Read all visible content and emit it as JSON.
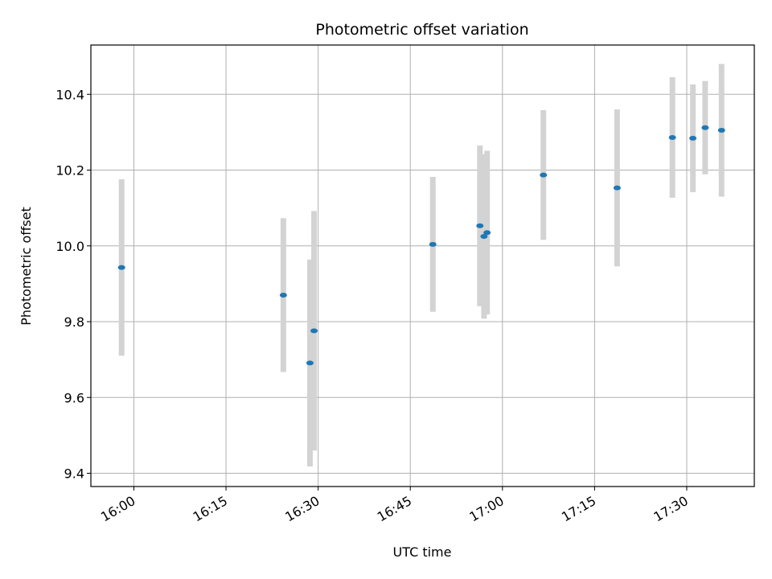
{
  "chart_data": {
    "type": "scatter",
    "title": "Photometric offset variation",
    "xlabel": "UTC time",
    "ylabel": "Photometric offset",
    "xlim": [
      "15:53",
      "17:41"
    ],
    "ylim": [
      9.365,
      10.53
    ],
    "x_ticks": [
      "16:00",
      "16:15",
      "16:30",
      "16:45",
      "17:00",
      "17:15",
      "17:30"
    ],
    "y_ticks": [
      "9.4",
      "9.6",
      "9.8",
      "10.0",
      "10.2",
      "10.4"
    ],
    "grid": true,
    "colors": {
      "marker": "#1f77b4",
      "errorbar": "#d3d3d3",
      "grid": "#b0b0b0"
    },
    "points": [
      {
        "x": "15:58:00",
        "y": 9.943,
        "yerr": 0.233
      },
      {
        "x": "16:24:20",
        "y": 9.87,
        "yerr": 0.203
      },
      {
        "x": "16:28:40",
        "y": 9.691,
        "yerr": 0.273
      },
      {
        "x": "16:29:20",
        "y": 9.776,
        "yerr": 0.316
      },
      {
        "x": "16:48:40",
        "y": 10.004,
        "yerr": 0.178
      },
      {
        "x": "16:56:20",
        "y": 10.053,
        "yerr": 0.212
      },
      {
        "x": "16:57:00",
        "y": 10.025,
        "yerr": 0.217
      },
      {
        "x": "16:57:30",
        "y": 10.035,
        "yerr": 0.216
      },
      {
        "x": "17:06:40",
        "y": 10.187,
        "yerr": 0.171
      },
      {
        "x": "17:18:40",
        "y": 10.153,
        "yerr": 0.207
      },
      {
        "x": "17:27:40",
        "y": 10.286,
        "yerr": 0.159
      },
      {
        "x": "17:31:00",
        "y": 10.284,
        "yerr": 0.142
      },
      {
        "x": "17:33:00",
        "y": 10.312,
        "yerr": 0.123
      },
      {
        "x": "17:35:40",
        "y": 10.305,
        "yerr": 0.175
      }
    ]
  }
}
